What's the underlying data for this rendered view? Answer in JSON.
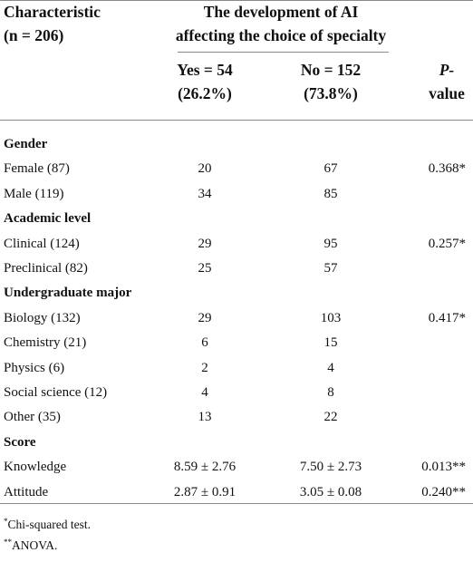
{
  "header": {
    "characteristic_line1": "Characteristic",
    "characteristic_line2": "(n = 206)",
    "group_line1": "The development of AI",
    "group_line2": "affecting the choice of specialty",
    "yes_line1": "Yes = 54",
    "yes_line2": "(26.2%)",
    "no_line1": "No = 152",
    "no_line2": "(73.8%)",
    "p_line1": "P-",
    "p_line2": "value"
  },
  "rows": [
    {
      "label": "Gender",
      "section": true,
      "yes": "",
      "no": "",
      "p": ""
    },
    {
      "label": "Female (87)",
      "section": false,
      "yes": "20",
      "no": "67",
      "p": "0.368*"
    },
    {
      "label": "Male (119)",
      "section": false,
      "yes": "34",
      "no": "85",
      "p": ""
    },
    {
      "label": "Academic level",
      "section": true,
      "yes": "",
      "no": "",
      "p": ""
    },
    {
      "label": "Clinical (124)",
      "section": false,
      "yes": "29",
      "no": "95",
      "p": "0.257*"
    },
    {
      "label": "Preclinical (82)",
      "section": false,
      "yes": "25",
      "no": "57",
      "p": ""
    },
    {
      "label": "Undergraduate major",
      "section": true,
      "yes": "",
      "no": "",
      "p": ""
    },
    {
      "label": "Biology (132)",
      "section": false,
      "yes": "29",
      "no": "103",
      "p": "0.417*"
    },
    {
      "label": "Chemistry (21)",
      "section": false,
      "yes": "6",
      "no": "15",
      "p": ""
    },
    {
      "label": "Physics (6)",
      "section": false,
      "yes": "2",
      "no": "4",
      "p": ""
    },
    {
      "label": "Social science (12)",
      "section": false,
      "yes": "4",
      "no": "8",
      "p": ""
    },
    {
      "label": "Other (35)",
      "section": false,
      "yes": "13",
      "no": "22",
      "p": ""
    },
    {
      "label": "Score",
      "section": true,
      "yes": "",
      "no": "",
      "p": ""
    },
    {
      "label": "Knowledge",
      "section": false,
      "yes": "8.59 ± 2.76",
      "no": "7.50 ± 2.73",
      "p": "0.013**"
    },
    {
      "label": "Attitude",
      "section": false,
      "yes": "2.87 ± 0.91",
      "no": "3.05 ± 0.08",
      "p": "0.240**"
    }
  ],
  "footnotes": [
    {
      "mark": "*",
      "text": "Chi-squared test."
    },
    {
      "mark": "**",
      "text": "ANOVA."
    }
  ]
}
